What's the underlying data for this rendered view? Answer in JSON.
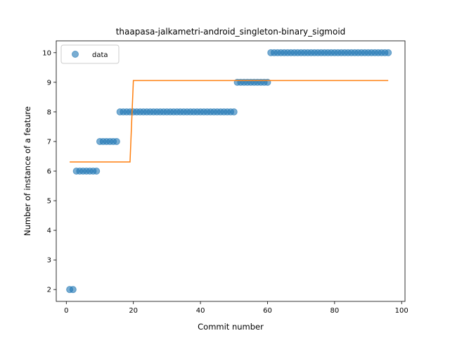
{
  "chart_data": {
    "type": "scatter",
    "title": "thaapasa-jalkametri-android_singleton-binary_sigmoid",
    "xlabel": "Commit number",
    "ylabel": "Number of instance of a feature",
    "xlim": [
      -3,
      101
    ],
    "ylim": [
      1.6,
      10.4
    ],
    "xticks": [
      0,
      20,
      40,
      60,
      80,
      100
    ],
    "yticks": [
      2,
      3,
      4,
      5,
      6,
      7,
      8,
      9,
      10
    ],
    "grid": false,
    "legend": {
      "position": "top-left",
      "entries": [
        {
          "label": "data"
        }
      ]
    },
    "colors": {
      "data": "#1f77b4",
      "fit": "#ff7f0e"
    },
    "series": [
      {
        "name": "data",
        "kind": "scatter",
        "x": [
          1,
          2,
          3,
          4,
          5,
          6,
          7,
          8,
          9,
          10,
          11,
          12,
          13,
          14,
          15,
          16,
          17,
          18,
          19,
          20,
          21,
          22,
          23,
          24,
          25,
          26,
          27,
          28,
          29,
          30,
          31,
          32,
          33,
          34,
          35,
          36,
          37,
          38,
          39,
          40,
          41,
          42,
          43,
          44,
          45,
          46,
          47,
          48,
          49,
          50,
          51,
          52,
          53,
          54,
          55,
          56,
          57,
          58,
          59,
          60,
          61,
          62,
          63,
          64,
          65,
          66,
          67,
          68,
          69,
          70,
          71,
          72,
          73,
          74,
          75,
          76,
          77,
          78,
          79,
          80,
          81,
          82,
          83,
          84,
          85,
          86,
          87,
          88,
          89,
          90,
          91,
          92,
          93,
          94,
          95,
          96
        ],
        "y": [
          2,
          2,
          6,
          6,
          6,
          6,
          6,
          6,
          6,
          7,
          7,
          7,
          7,
          7,
          7,
          8,
          8,
          8,
          8,
          8,
          8,
          8,
          8,
          8,
          8,
          8,
          8,
          8,
          8,
          8,
          8,
          8,
          8,
          8,
          8,
          8,
          8,
          8,
          8,
          8,
          8,
          8,
          8,
          8,
          8,
          8,
          8,
          8,
          8,
          8,
          9,
          9,
          9,
          9,
          9,
          9,
          9,
          9,
          9,
          9,
          10,
          10,
          10,
          10,
          10,
          10,
          10,
          10,
          10,
          10,
          10,
          10,
          10,
          10,
          10,
          10,
          10,
          10,
          10,
          10,
          10,
          10,
          10,
          10,
          10,
          10,
          10,
          10,
          10,
          10,
          10,
          10,
          10,
          10,
          10,
          10
        ]
      },
      {
        "kind": "line",
        "x": [
          1,
          19,
          20,
          96
        ],
        "y": [
          6.31,
          6.31,
          9.06,
          9.06
        ]
      }
    ]
  }
}
